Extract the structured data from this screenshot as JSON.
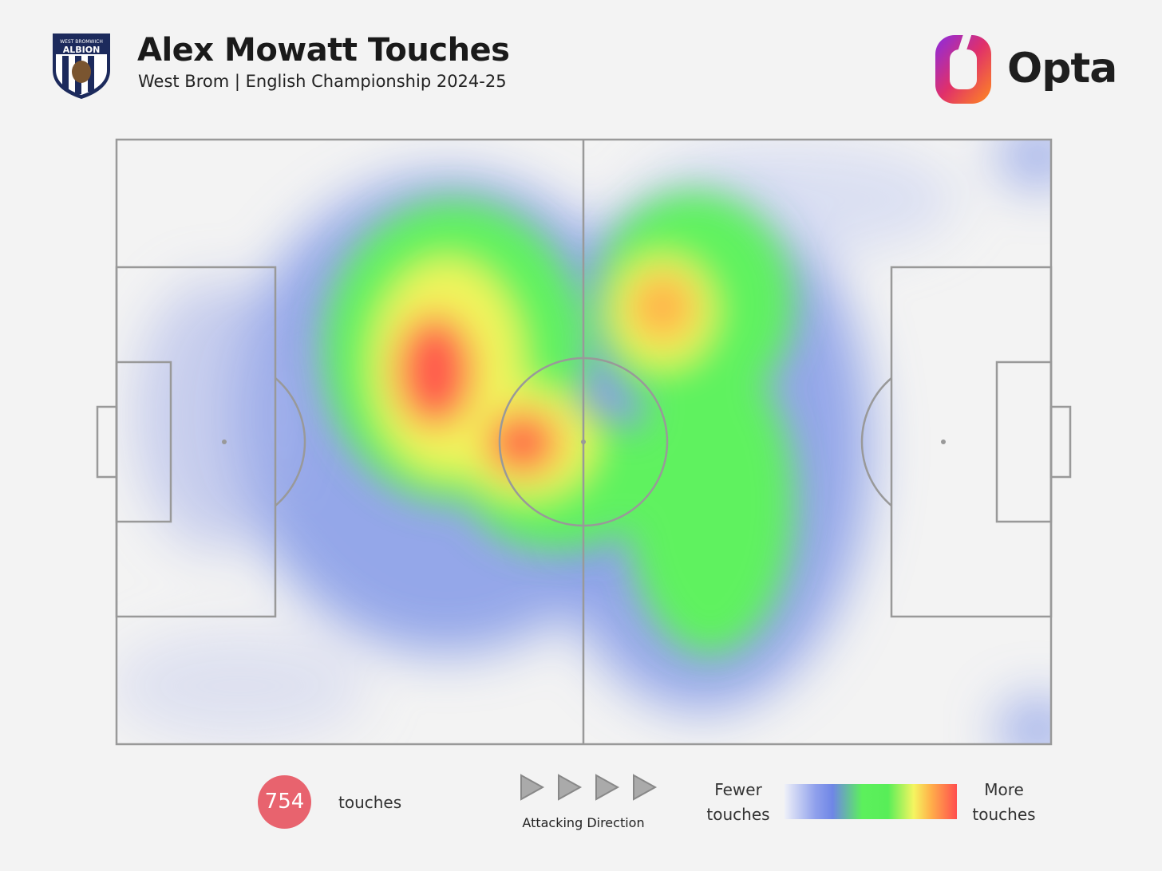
{
  "header": {
    "title": "Alex Mowatt Touches",
    "subtitle": "West Brom | English Championship 2024-25",
    "badge_top": "WEST BROMWICH",
    "badge_name": "ALBION"
  },
  "logo": "Opta",
  "stats": {
    "touches_value": 754,
    "touches_label": "touches"
  },
  "direction_label": "Attacking Direction",
  "legend": {
    "low": "Fewer touches",
    "high": "More touches"
  }
}
